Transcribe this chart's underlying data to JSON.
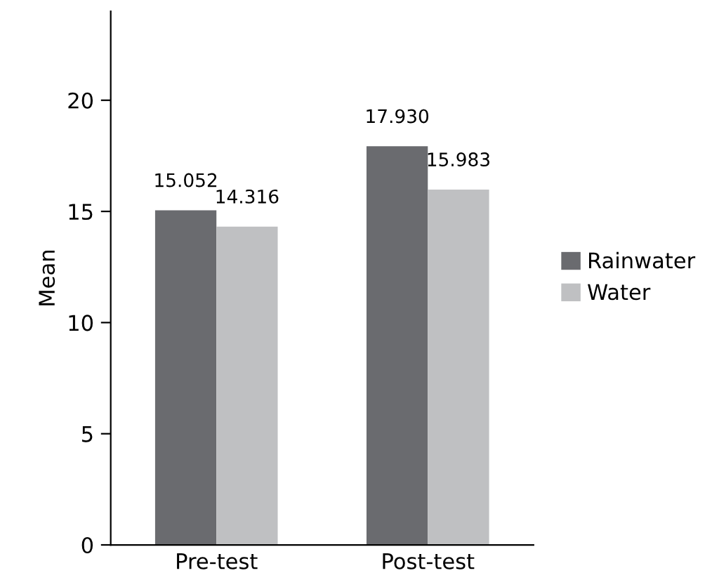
{
  "chart_data": {
    "type": "bar",
    "ylabel": "Mean",
    "categories": [
      "Pre-test",
      "Post-test"
    ],
    "series": [
      {
        "name": "Rainwater",
        "color": "#6a6b6f",
        "values": [
          15.052,
          17.93
        ],
        "value_labels": [
          "15.052",
          "17.930"
        ]
      },
      {
        "name": "Water",
        "color": "#bfc0c2",
        "values": [
          14.316,
          15.983
        ],
        "value_labels": [
          "14.316",
          "15.983"
        ]
      }
    ],
    "ylim": [
      0,
      24
    ],
    "yticks": [
      0,
      5,
      10,
      15,
      20
    ],
    "grid": false,
    "legend": "right"
  }
}
